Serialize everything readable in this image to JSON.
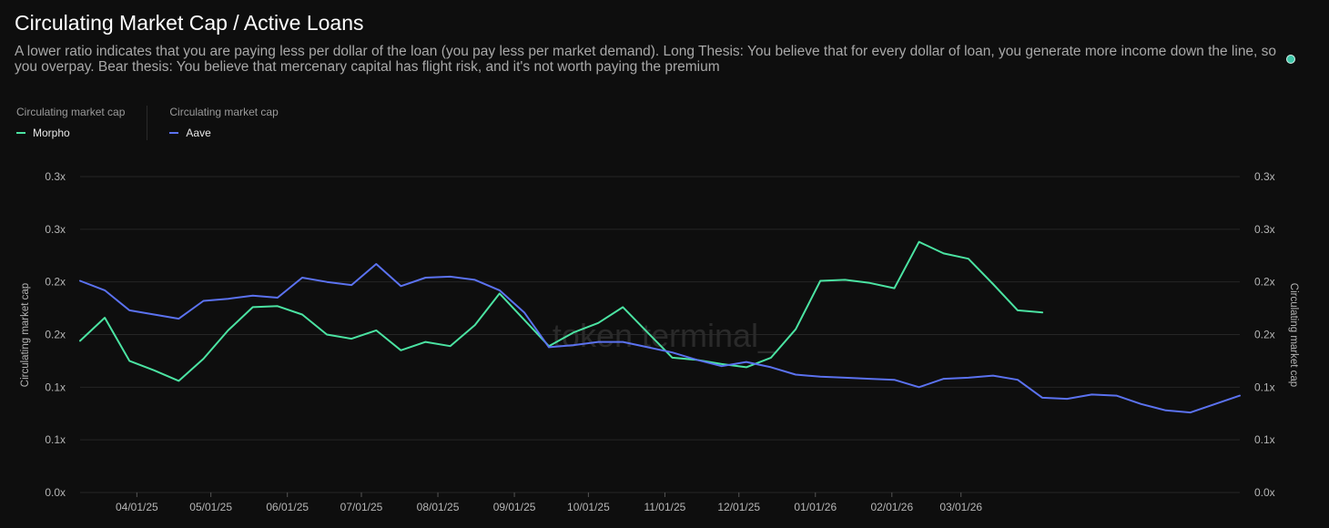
{
  "header": {
    "title": "Circulating Market Cap / Active Loans",
    "subtitle": "A lower ratio indicates that you are paying less per dollar of the loan (you pay less per market demand). Long Thesis: You believe that for every dollar of loan, you generate more income down the line, so you overpay. Bear thesis: You believe that mercenary capital has flight risk, and it's not worth paying the premium"
  },
  "watermark": "token terminal_",
  "colors": {
    "morpho": "#4be3a2",
    "aave": "#5b72f0",
    "status_dot": "#3fc7a9"
  },
  "chart_data": {
    "type": "line",
    "title": "Circulating Market Cap / Active Loans",
    "ylabel": "Circulating market cap",
    "y2label": "Circulating market cap",
    "ylim": [
      0,
      0.3
    ],
    "y_ticks": [
      0,
      0.05,
      0.1,
      0.15,
      0.2,
      0.25,
      0.3
    ],
    "y_tick_labels": [
      "0.0x",
      "0.1x",
      "0.1x",
      "0.2x",
      "0.2x",
      "0.3x",
      "0.3x"
    ],
    "x_tick_labels": [
      "04/01/25",
      "05/01/25",
      "06/01/25",
      "07/01/25",
      "08/01/25",
      "09/01/25",
      "10/01/25",
      "11/01/25",
      "12/01/25",
      "01/01/26",
      "02/01/26",
      "03/01/26"
    ],
    "legend_placement": "top-left",
    "grid": true,
    "series": [
      {
        "name": "Morpho",
        "group": "Circulating market cap",
        "color": "#4be3a2",
        "points": [
          [
            "2025-03-09",
            0.144
          ],
          [
            "2025-03-19",
            0.166
          ],
          [
            "2025-03-29",
            0.125
          ],
          [
            "2025-04-08",
            0.116
          ],
          [
            "2025-04-18",
            0.106
          ],
          [
            "2025-04-28",
            0.127
          ],
          [
            "2025-05-08",
            0.154
          ],
          [
            "2025-05-18",
            0.176
          ],
          [
            "2025-05-28",
            0.177
          ],
          [
            "2025-06-07",
            0.169
          ],
          [
            "2025-06-17",
            0.15
          ],
          [
            "2025-06-27",
            0.146
          ],
          [
            "2025-07-07",
            0.154
          ],
          [
            "2025-07-17",
            0.135
          ],
          [
            "2025-07-27",
            0.143
          ],
          [
            "2025-08-06",
            0.139
          ],
          [
            "2025-08-16",
            0.159
          ],
          [
            "2025-08-26",
            0.189
          ],
          [
            "2025-09-05",
            0.164
          ],
          [
            "2025-09-15",
            0.139
          ],
          [
            "2025-09-25",
            0.152
          ],
          [
            "2025-10-05",
            0.161
          ],
          [
            "2025-10-15",
            0.176
          ],
          [
            "2025-10-25",
            0.152
          ],
          [
            "2025-11-04",
            0.128
          ],
          [
            "2025-11-14",
            0.126
          ],
          [
            "2025-11-24",
            0.122
          ],
          [
            "2025-12-04",
            0.119
          ],
          [
            "2025-12-14",
            0.128
          ],
          [
            "2025-12-24",
            0.155
          ],
          [
            "2026-01-03",
            0.201
          ],
          [
            "2026-01-13",
            0.202
          ],
          [
            "2026-01-23",
            0.199
          ],
          [
            "2026-02-02",
            0.194
          ],
          [
            "2026-02-12",
            0.238
          ],
          [
            "2026-02-22",
            0.227
          ],
          [
            "2026-03-04",
            0.222
          ],
          [
            "2026-03-14",
            0.198
          ],
          [
            "2026-03-24",
            0.173
          ],
          [
            "2026-04-03",
            0.171
          ]
        ]
      },
      {
        "name": "Aave",
        "group": "Circulating market cap",
        "color": "#5b72f0",
        "points": [
          [
            "2025-03-09",
            0.201
          ],
          [
            "2025-03-19",
            0.192
          ],
          [
            "2025-03-29",
            0.173
          ],
          [
            "2025-04-08",
            0.169
          ],
          [
            "2025-04-18",
            0.165
          ],
          [
            "2025-04-28",
            0.182
          ],
          [
            "2025-05-08",
            0.184
          ],
          [
            "2025-05-18",
            0.187
          ],
          [
            "2025-05-28",
            0.185
          ],
          [
            "2025-06-07",
            0.204
          ],
          [
            "2025-06-17",
            0.2
          ],
          [
            "2025-06-27",
            0.197
          ],
          [
            "2025-07-07",
            0.217
          ],
          [
            "2025-07-17",
            0.196
          ],
          [
            "2025-07-27",
            0.204
          ],
          [
            "2025-08-06",
            0.205
          ],
          [
            "2025-08-16",
            0.202
          ],
          [
            "2025-08-26",
            0.192
          ],
          [
            "2025-09-05",
            0.171
          ],
          [
            "2025-09-15",
            0.138
          ],
          [
            "2025-09-25",
            0.14
          ],
          [
            "2025-10-05",
            0.143
          ],
          [
            "2025-10-15",
            0.143
          ],
          [
            "2025-10-25",
            0.138
          ],
          [
            "2025-11-04",
            0.133
          ],
          [
            "2025-11-14",
            0.126
          ],
          [
            "2025-11-24",
            0.12
          ],
          [
            "2025-12-04",
            0.124
          ],
          [
            "2025-12-14",
            0.119
          ],
          [
            "2025-12-24",
            0.112
          ],
          [
            "2026-01-03",
            0.11
          ],
          [
            "2026-01-13",
            0.109
          ],
          [
            "2026-01-23",
            0.108
          ],
          [
            "2026-02-02",
            0.107
          ],
          [
            "2026-02-12",
            0.1
          ],
          [
            "2026-02-22",
            0.108
          ],
          [
            "2026-03-04",
            0.109
          ],
          [
            "2026-03-14",
            0.111
          ],
          [
            "2026-03-24",
            0.107
          ],
          [
            "2026-04-03",
            0.09
          ],
          [
            "2026-04-13",
            0.089
          ],
          [
            "2026-04-23",
            0.093
          ],
          [
            "2026-05-03",
            0.092
          ],
          [
            "2026-05-13",
            0.084
          ],
          [
            "2026-05-23",
            0.078
          ],
          [
            "2026-06-02",
            0.076
          ],
          [
            "2026-06-12",
            0.084
          ],
          [
            "2026-06-22",
            0.092
          ]
        ]
      }
    ]
  }
}
